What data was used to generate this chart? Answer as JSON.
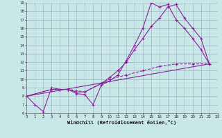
{
  "xlabel": "Windchill (Refroidissement éolien,°C)",
  "bg_color": "#c8e8e8",
  "grid_color": "#99aabb",
  "line_color": "#882299",
  "xlim": [
    0,
    23
  ],
  "ylim": [
    6,
    19
  ],
  "xticks": [
    0,
    1,
    2,
    3,
    4,
    5,
    6,
    7,
    8,
    9,
    10,
    11,
    12,
    13,
    14,
    15,
    16,
    17,
    18,
    19,
    20,
    21,
    22,
    23
  ],
  "yticks": [
    6,
    7,
    8,
    9,
    10,
    11,
    12,
    13,
    14,
    15,
    16,
    17,
    18,
    19
  ],
  "line1_x": [
    0,
    1,
    2,
    3,
    4,
    5,
    6,
    7,
    8,
    9,
    10,
    11,
    12,
    13,
    14,
    15,
    16,
    17,
    18,
    19,
    20,
    21,
    22
  ],
  "line1_y": [
    8.0,
    7.0,
    6.2,
    9.0,
    8.8,
    8.8,
    8.3,
    8.2,
    7.0,
    9.3,
    9.8,
    10.5,
    12.2,
    14.0,
    16.0,
    19.0,
    18.5,
    18.8,
    17.0,
    16.0,
    14.8,
    13.5,
    11.8
  ],
  "line2_x": [
    0,
    3,
    4,
    5,
    6,
    7,
    9,
    10,
    11,
    12,
    13,
    14,
    15,
    16,
    17,
    18,
    19,
    20,
    21,
    22
  ],
  "line2_y": [
    8.0,
    8.8,
    8.8,
    8.8,
    8.5,
    8.5,
    9.5,
    10.2,
    11.0,
    12.0,
    13.5,
    14.8,
    16.2,
    17.2,
    18.5,
    18.8,
    17.2,
    16.0,
    14.8,
    11.8
  ],
  "line3_x": [
    0,
    22
  ],
  "line3_y": [
    8.0,
    11.8
  ],
  "line4_x": [
    0,
    3,
    5,
    7,
    9,
    10,
    12,
    14,
    16,
    18,
    20,
    22
  ],
  "line4_y": [
    8.0,
    8.8,
    8.8,
    8.5,
    9.5,
    10.0,
    10.5,
    11.0,
    11.5,
    11.8,
    11.8,
    11.8
  ]
}
